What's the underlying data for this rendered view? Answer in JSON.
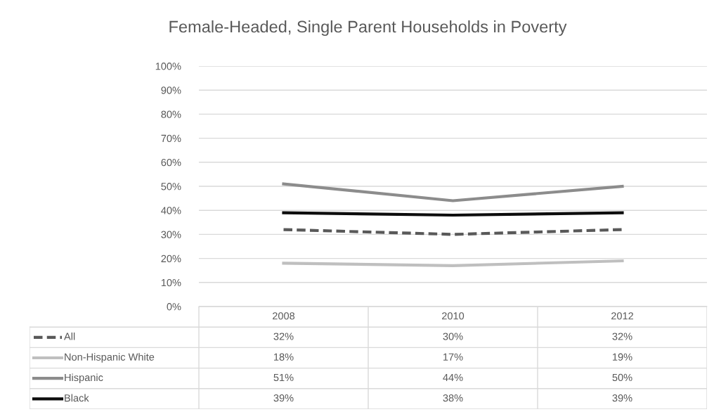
{
  "chart_data": {
    "type": "line",
    "title": "Female-Headed, Single Parent Households in Poverty",
    "categories": [
      "2008",
      "2010",
      "2012"
    ],
    "ylim": [
      0,
      100
    ],
    "yticks": [
      {
        "value": 0,
        "label": "0%"
      },
      {
        "value": 10,
        "label": "10%"
      },
      {
        "value": 20,
        "label": "20%"
      },
      {
        "value": 30,
        "label": "30%"
      },
      {
        "value": 40,
        "label": "40%"
      },
      {
        "value": 50,
        "label": "50%"
      },
      {
        "value": 60,
        "label": "60%"
      },
      {
        "value": 70,
        "label": "70%"
      },
      {
        "value": 80,
        "label": "80%"
      },
      {
        "value": 90,
        "label": "90%"
      },
      {
        "value": 100,
        "label": "100%"
      }
    ],
    "grid": "y",
    "legend": "bottom",
    "marker": "none",
    "series": [
      {
        "name": "All",
        "color": "#595959",
        "line_style": "dashed",
        "values": [
          32,
          30,
          32
        ],
        "value_labels": [
          "32%",
          "30%",
          "32%"
        ]
      },
      {
        "name": "Non-Hispanic White",
        "color": "#bfbfbf",
        "line_style": "solid",
        "values": [
          18,
          17,
          19
        ],
        "value_labels": [
          "18%",
          "17%",
          "19%"
        ]
      },
      {
        "name": "Hispanic",
        "color": "#8c8c8c",
        "line_style": "solid",
        "values": [
          51,
          44,
          50
        ],
        "value_labels": [
          "51%",
          "44%",
          "50%"
        ]
      },
      {
        "name": "Black",
        "color": "#0d0d0d",
        "line_style": "solid",
        "values": [
          39,
          38,
          39
        ],
        "value_labels": [
          "39%",
          "38%",
          "39%"
        ]
      }
    ]
  }
}
